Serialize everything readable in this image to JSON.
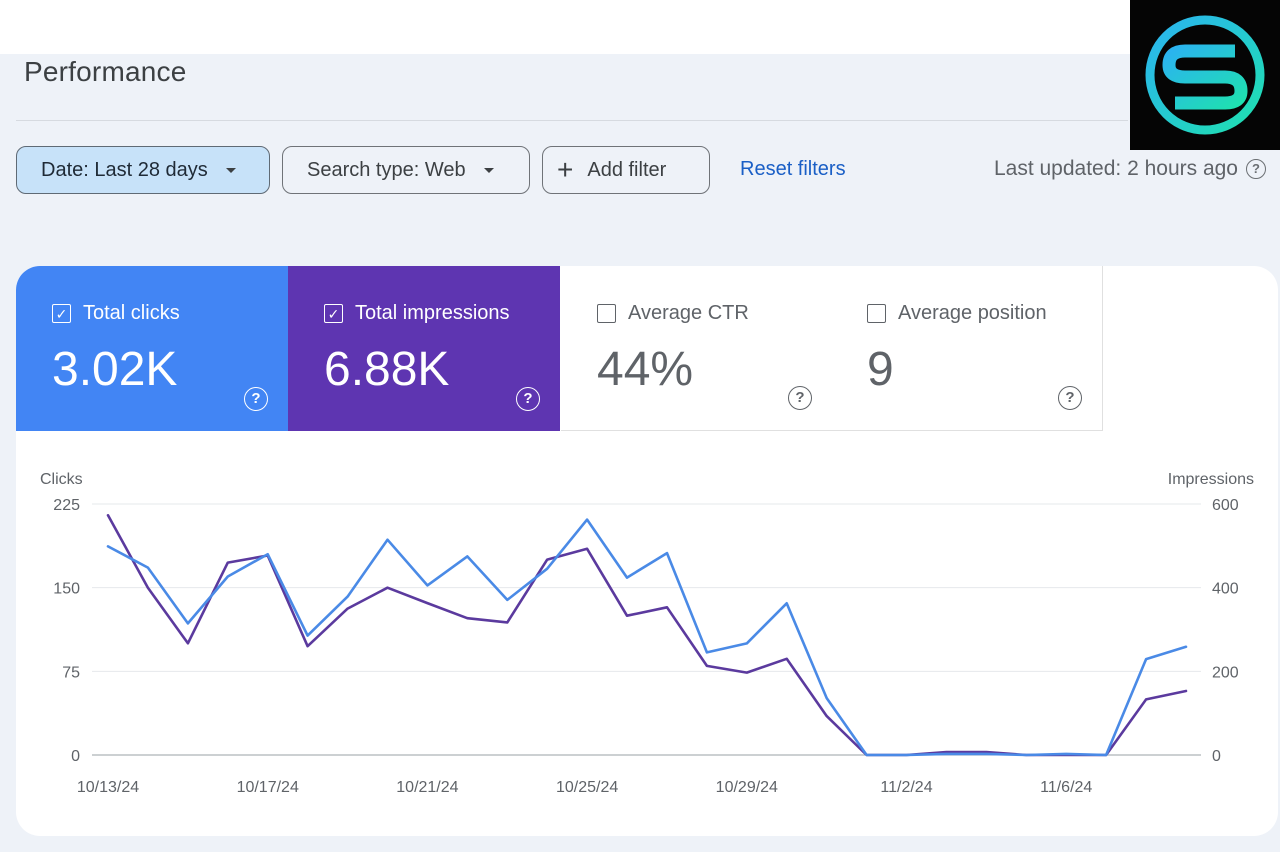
{
  "header": {
    "title": "Performance"
  },
  "filters": {
    "date_label": "Date: Last 28 days",
    "search_type_label": "Search type: Web",
    "add_filter_label": "Add filter",
    "add_filter_icon": "+",
    "reset_label": "Reset filters",
    "last_updated": "Last updated: 2 hours ago",
    "help_glyph": "?"
  },
  "metrics": [
    {
      "label": "Total clicks",
      "value": "3.02K",
      "checked": true,
      "check_glyph": "✓",
      "color": "#4285f4"
    },
    {
      "label": "Total impressions",
      "value": "6.88K",
      "checked": true,
      "check_glyph": "✓",
      "color": "#5e35b1"
    },
    {
      "label": "Average CTR",
      "value": "44%",
      "checked": false,
      "check_glyph": ""
    },
    {
      "label": "Average position",
      "value": "9",
      "checked": false,
      "check_glyph": ""
    }
  ],
  "chart_data": {
    "type": "line",
    "left_axis_label": "Clicks",
    "right_axis_label": "Impressions",
    "left_ylim": [
      0,
      225
    ],
    "right_ylim": [
      0,
      600
    ],
    "left_ticks": [
      "225",
      "150",
      "75",
      "0"
    ],
    "right_ticks": [
      "600",
      "400",
      "200",
      "0"
    ],
    "x_tick_labels": [
      "10/13/24",
      "10/17/24",
      "10/21/24",
      "10/25/24",
      "10/29/24",
      "11/2/24",
      "11/6/24"
    ],
    "x_tick_indices": [
      0,
      4,
      8,
      12,
      16,
      20,
      24
    ],
    "grid": true,
    "series": [
      {
        "name": "Clicks",
        "axis": "left",
        "color": "#4a8ae6",
        "values": [
          187,
          168,
          118,
          160,
          180,
          107,
          142,
          193,
          152,
          178,
          139,
          167,
          211,
          159,
          181,
          92,
          100,
          136,
          51,
          0,
          0,
          1,
          1,
          0,
          1,
          0,
          86,
          97
        ]
      },
      {
        "name": "Impressions",
        "axis": "right",
        "color": "#5b3a9e",
        "values": [
          573,
          400,
          267,
          460,
          477,
          260,
          350,
          400,
          363,
          327,
          317,
          467,
          493,
          333,
          353,
          213,
          197,
          230,
          93,
          0,
          0,
          7,
          7,
          0,
          0,
          0,
          133,
          153
        ]
      }
    ]
  }
}
